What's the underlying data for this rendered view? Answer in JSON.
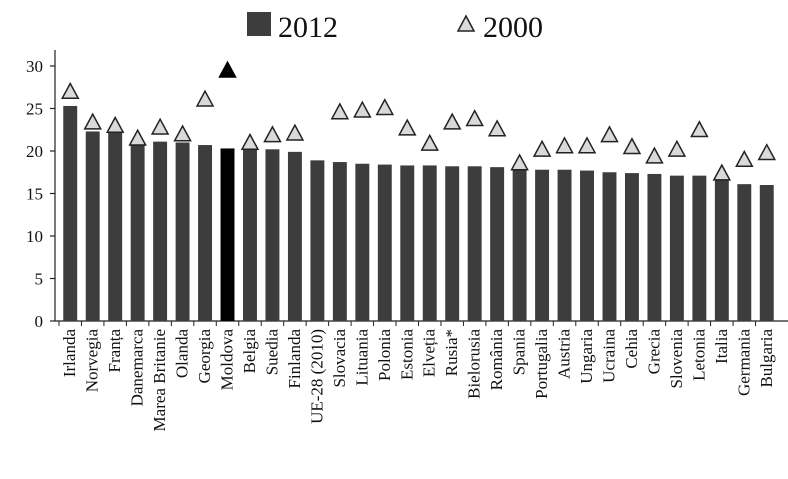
{
  "chart_data": {
    "type": "bar",
    "categories": [
      "Irlanda",
      "Norvegia",
      "Franța",
      "Danemarca",
      "Marea Britanie",
      "Olanda",
      "Georgia",
      "Moldova",
      "Belgia",
      "Suedia",
      "Finlanda",
      "UE-28 (2010)",
      "Slovacia",
      "Lituania",
      "Polonia",
      "Estonia",
      "Elveția",
      "Rusia*",
      "Bielorusia",
      "România",
      "Spania",
      "Portugalia",
      "Austria",
      "Ungaria",
      "Ucraina",
      "Cehia",
      "Grecia",
      "Slovenia",
      "Letonia",
      "Italia",
      "Germania",
      "Bulgaria"
    ],
    "series": [
      {
        "name": "2012",
        "type": "bar",
        "values": [
          25.3,
          22.3,
          22.2,
          21.0,
          21.1,
          21.0,
          20.7,
          20.3,
          20.5,
          20.2,
          19.9,
          18.9,
          18.7,
          18.5,
          18.4,
          18.3,
          18.3,
          18.2,
          18.2,
          18.1,
          18.0,
          17.8,
          17.8,
          17.7,
          17.5,
          17.4,
          17.3,
          17.1,
          17.1,
          16.8,
          16.1,
          16.0
        ]
      },
      {
        "name": "2000",
        "type": "marker",
        "values": [
          27.0,
          23.4,
          23.0,
          21.5,
          22.8,
          22.0,
          26.1,
          29.5,
          21.0,
          21.9,
          22.1,
          null,
          24.6,
          24.8,
          25.1,
          22.7,
          20.9,
          23.4,
          23.8,
          22.6,
          18.6,
          20.2,
          20.6,
          20.6,
          21.9,
          20.5,
          19.4,
          20.2,
          22.5,
          17.4,
          19.0,
          19.8
        ]
      }
    ],
    "highlight": {
      "category": "Moldova",
      "bar_color": "#000000",
      "marker_color": "#000000"
    },
    "colors": {
      "bar": "#3d3d3d",
      "marker_fill": "#d9d9d9",
      "marker_stroke": "#222222",
      "axis": "#222222"
    },
    "ylim": [
      0,
      30
    ],
    "yticks": [
      0,
      5,
      10,
      15,
      20,
      25,
      30
    ],
    "xlabel": "",
    "ylabel": "",
    "grid": false,
    "legend_position": "top-center"
  }
}
